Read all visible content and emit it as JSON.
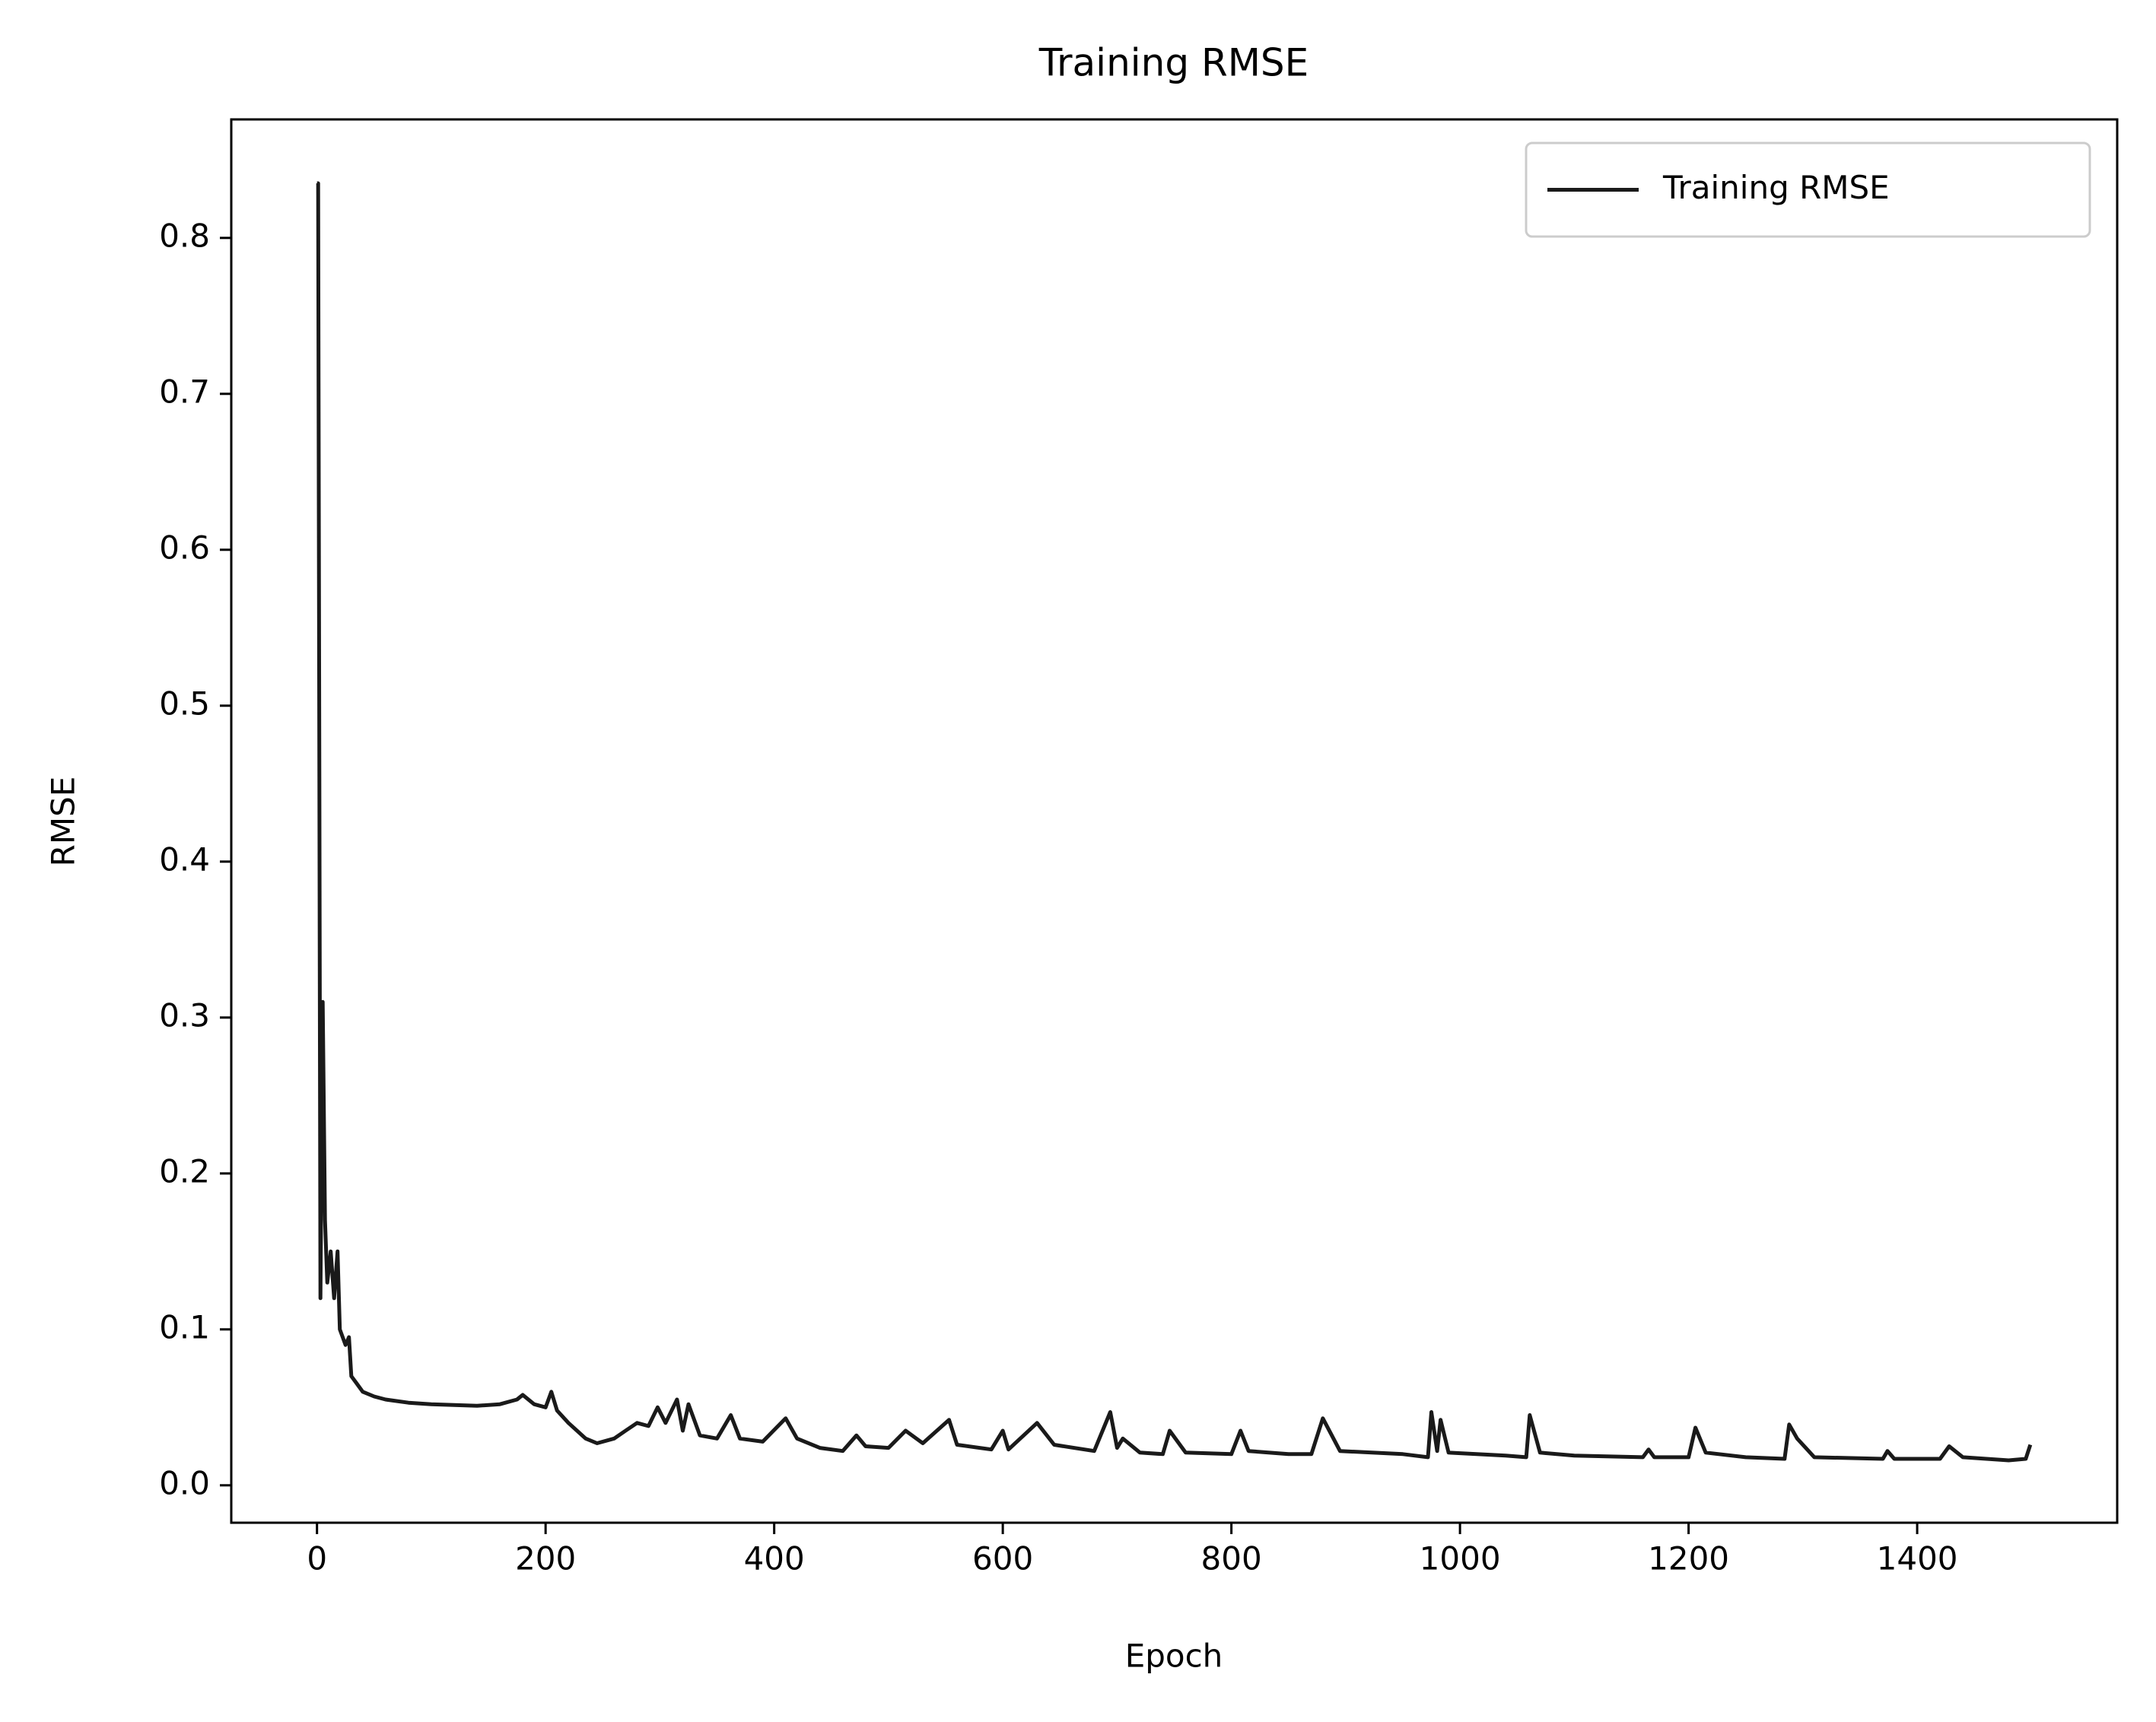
{
  "chart_data": {
    "type": "line",
    "title": "Training RMSE",
    "xlabel": "Epoch",
    "ylabel": "RMSE",
    "x": [
      0,
      1,
      3,
      5,
      7,
      9,
      12,
      15,
      18,
      20,
      25,
      28,
      30,
      35,
      40,
      50,
      60,
      80,
      100,
      140,
      160,
      175,
      180,
      190,
      200,
      205,
      210,
      220,
      235,
      245,
      260,
      270,
      280,
      290,
      298,
      305,
      315,
      320,
      325,
      335,
      350,
      362,
      370,
      390,
      410,
      420,
      440,
      460,
      472,
      480,
      500,
      515,
      530,
      553,
      560,
      590,
      600,
      605,
      630,
      645,
      680,
      694,
      700,
      705,
      720,
      740,
      746,
      760,
      800,
      808,
      815,
      850,
      870,
      880,
      895,
      950,
      972,
      975,
      980,
      983,
      990,
      1040,
      1058,
      1061,
      1070,
      1100,
      1160,
      1165,
      1170,
      1200,
      1206,
      1215,
      1250,
      1284,
      1288,
      1295,
      1310,
      1370,
      1374,
      1380,
      1420,
      1428,
      1440,
      1480,
      1495,
      1499
    ],
    "series": [
      {
        "name": "Training RMSE",
        "color": "#1a1a1a",
        "values": [
          0.835,
          0.835,
          0.12,
          0.31,
          0.17,
          0.13,
          0.15,
          0.12,
          0.15,
          0.1,
          0.09,
          0.095,
          0.07,
          0.065,
          0.06,
          0.057,
          0.055,
          0.053,
          0.052,
          0.051,
          0.052,
          0.055,
          0.058,
          0.052,
          0.05,
          0.06,
          0.048,
          0.04,
          0.03,
          0.027,
          0.03,
          0.035,
          0.04,
          0.038,
          0.05,
          0.04,
          0.055,
          0.035,
          0.052,
          0.032,
          0.03,
          0.045,
          0.03,
          0.028,
          0.043,
          0.03,
          0.024,
          0.022,
          0.032,
          0.025,
          0.024,
          0.035,
          0.027,
          0.042,
          0.026,
          0.023,
          0.035,
          0.023,
          0.04,
          0.026,
          0.022,
          0.047,
          0.024,
          0.03,
          0.021,
          0.02,
          0.035,
          0.021,
          0.02,
          0.035,
          0.022,
          0.02,
          0.02,
          0.043,
          0.022,
          0.02,
          0.018,
          0.047,
          0.022,
          0.042,
          0.021,
          0.019,
          0.018,
          0.045,
          0.021,
          0.019,
          0.018,
          0.023,
          0.018,
          0.018,
          0.037,
          0.021,
          0.018,
          0.017,
          0.039,
          0.03,
          0.018,
          0.017,
          0.022,
          0.017,
          0.017,
          0.025,
          0.018,
          0.016,
          0.017,
          0.026
        ]
      }
    ],
    "xlim": [
      -75,
      1575
    ],
    "xticks": [
      0,
      200,
      400,
      600,
      800,
      1000,
      1200,
      1400
    ],
    "ylim": [
      -0.024,
      0.876
    ],
    "yticks": [
      {
        "value": 0,
        "label": "0.0"
      },
      0.1,
      0.2,
      0.3,
      0.4,
      0.5,
      0.6,
      0.7,
      0.8
    ],
    "legend": "upper right"
  }
}
